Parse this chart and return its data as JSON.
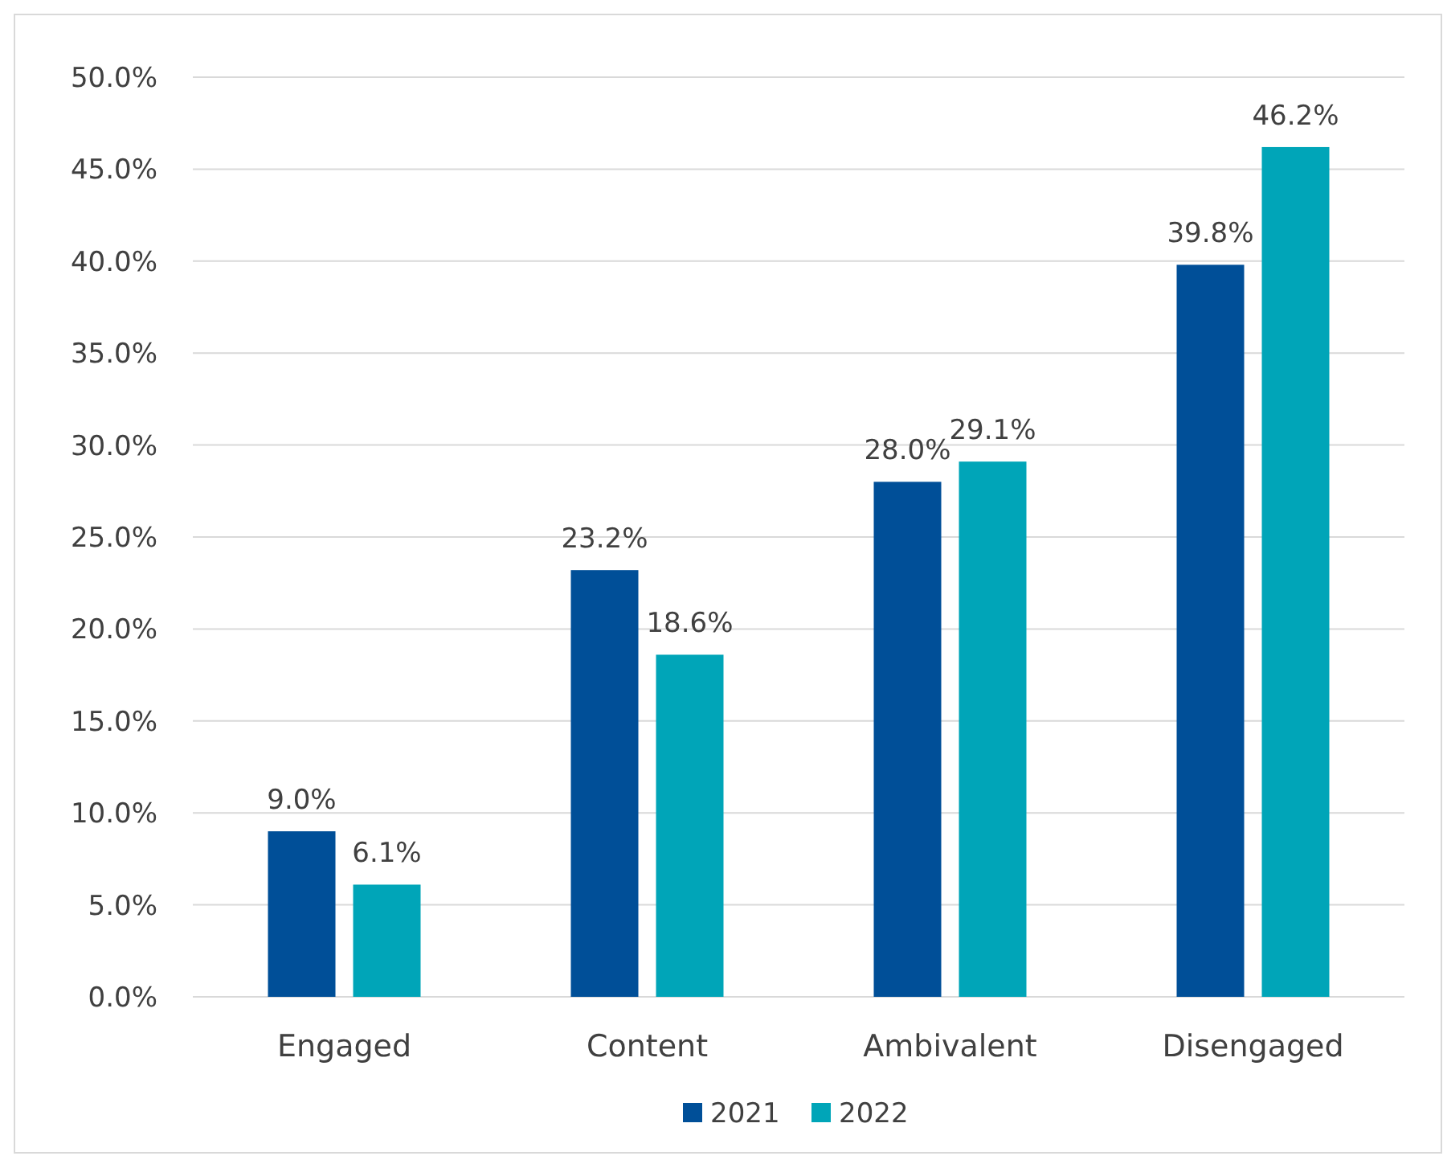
{
  "chart_data": {
    "type": "bar",
    "categories": [
      "Engaged",
      "Content",
      "Ambivalent",
      "Disengaged"
    ],
    "series": [
      {
        "name": "2021",
        "color": "#004f98",
        "values": [
          9.0,
          23.2,
          28.0,
          39.8
        ],
        "value_labels": [
          "9.0%",
          "23.2%",
          "28.0%",
          "39.8%"
        ]
      },
      {
        "name": "2022",
        "color": "#00a5b8",
        "values": [
          6.1,
          18.6,
          29.1,
          46.2
        ],
        "value_labels": [
          "6.1%",
          "18.6%",
          "29.1%",
          "46.2%"
        ]
      }
    ],
    "ylim": [
      0,
      50
    ],
    "yticks": [
      {
        "value": 0,
        "label": "0.0%"
      },
      {
        "value": 5,
        "label": "5.0%"
      },
      {
        "value": 10,
        "label": "10.0%"
      },
      {
        "value": 15,
        "label": "15.0%"
      },
      {
        "value": 20,
        "label": "20.0%"
      },
      {
        "value": 25,
        "label": "25.0%"
      },
      {
        "value": 30,
        "label": "30.0%"
      },
      {
        "value": 35,
        "label": "35.0%"
      },
      {
        "value": 40,
        "label": "40.0%"
      },
      {
        "value": 45,
        "label": "45.0%"
      },
      {
        "value": 50,
        "label": "50.0%"
      }
    ],
    "grid": "y",
    "legend": "bottom"
  }
}
